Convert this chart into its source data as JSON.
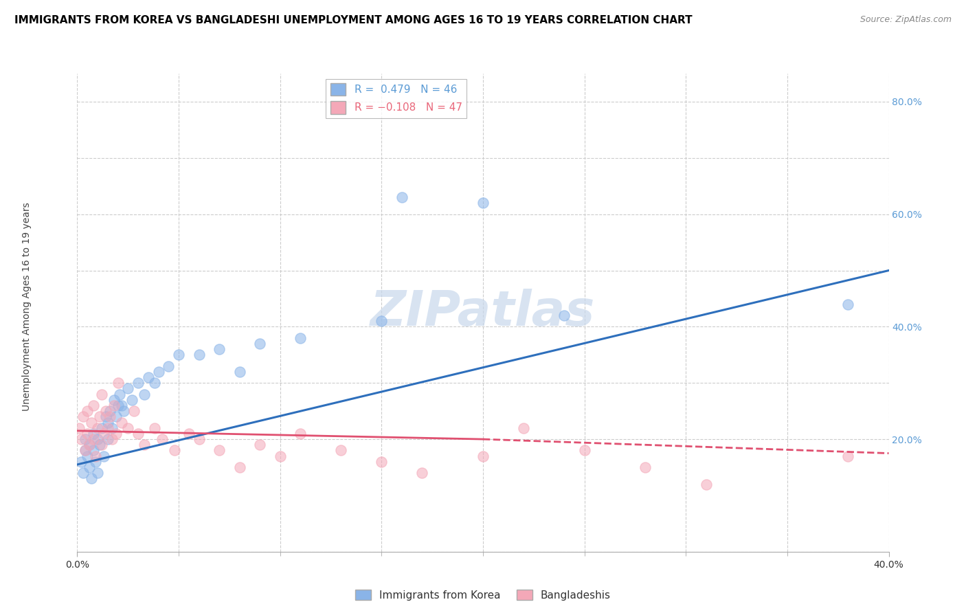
{
  "title": "IMMIGRANTS FROM KOREA VS BANGLADESHI UNEMPLOYMENT AMONG AGES 16 TO 19 YEARS CORRELATION CHART",
  "source": "Source: ZipAtlas.com",
  "ylabel": "Unemployment Among Ages 16 to 19 years",
  "xlim": [
    0.0,
    0.4
  ],
  "ylim": [
    0.0,
    0.85
  ],
  "xticks": [
    0.0,
    0.05,
    0.1,
    0.15,
    0.2,
    0.25,
    0.3,
    0.35,
    0.4
  ],
  "ytick_right_labels": [
    "",
    "20.0%",
    "",
    "40.0%",
    "",
    "60.0%",
    "",
    "80.0%"
  ],
  "ytick_right_positions": [
    0.0,
    0.2,
    0.3,
    0.4,
    0.5,
    0.6,
    0.7,
    0.8
  ],
  "legend_entries": [
    {
      "label": "R =  0.479   N = 46",
      "color": "#5b9bd5"
    },
    {
      "label": "R = −0.108   N = 47",
      "color": "#e9677a"
    }
  ],
  "korea_color": "#8ab4e8",
  "bangladesh_color": "#f4a8b8",
  "korea_line_color": "#2e6fbc",
  "bangladesh_line_color": "#e05070",
  "watermark": "ZIPatlas",
  "korea_scatter_x": [
    0.002,
    0.003,
    0.004,
    0.004,
    0.005,
    0.006,
    0.006,
    0.007,
    0.008,
    0.008,
    0.009,
    0.01,
    0.01,
    0.011,
    0.012,
    0.013,
    0.014,
    0.015,
    0.015,
    0.016,
    0.017,
    0.018,
    0.019,
    0.02,
    0.021,
    0.022,
    0.023,
    0.025,
    0.027,
    0.03,
    0.033,
    0.035,
    0.038,
    0.04,
    0.045,
    0.05,
    0.06,
    0.07,
    0.08,
    0.09,
    0.11,
    0.15,
    0.16,
    0.2,
    0.24,
    0.38
  ],
  "korea_scatter_y": [
    0.16,
    0.14,
    0.18,
    0.2,
    0.17,
    0.19,
    0.15,
    0.13,
    0.18,
    0.21,
    0.16,
    0.2,
    0.14,
    0.19,
    0.22,
    0.17,
    0.24,
    0.2,
    0.23,
    0.25,
    0.22,
    0.27,
    0.24,
    0.26,
    0.28,
    0.26,
    0.25,
    0.29,
    0.27,
    0.3,
    0.28,
    0.31,
    0.3,
    0.32,
    0.33,
    0.35,
    0.35,
    0.36,
    0.32,
    0.37,
    0.38,
    0.41,
    0.63,
    0.62,
    0.42,
    0.44
  ],
  "bangladesh_scatter_x": [
    0.001,
    0.002,
    0.003,
    0.004,
    0.005,
    0.005,
    0.006,
    0.007,
    0.008,
    0.008,
    0.009,
    0.01,
    0.011,
    0.012,
    0.012,
    0.013,
    0.014,
    0.015,
    0.016,
    0.017,
    0.018,
    0.019,
    0.02,
    0.022,
    0.025,
    0.028,
    0.03,
    0.033,
    0.038,
    0.042,
    0.048,
    0.055,
    0.06,
    0.07,
    0.08,
    0.09,
    0.1,
    0.11,
    0.13,
    0.15,
    0.17,
    0.2,
    0.22,
    0.25,
    0.28,
    0.31,
    0.38
  ],
  "bangladesh_scatter_y": [
    0.22,
    0.2,
    0.24,
    0.18,
    0.25,
    0.21,
    0.19,
    0.23,
    0.2,
    0.26,
    0.17,
    0.22,
    0.24,
    0.19,
    0.28,
    0.21,
    0.25,
    0.22,
    0.24,
    0.2,
    0.26,
    0.21,
    0.3,
    0.23,
    0.22,
    0.25,
    0.21,
    0.19,
    0.22,
    0.2,
    0.18,
    0.21,
    0.2,
    0.18,
    0.15,
    0.19,
    0.17,
    0.21,
    0.18,
    0.16,
    0.14,
    0.17,
    0.22,
    0.18,
    0.15,
    0.12,
    0.17
  ]
}
